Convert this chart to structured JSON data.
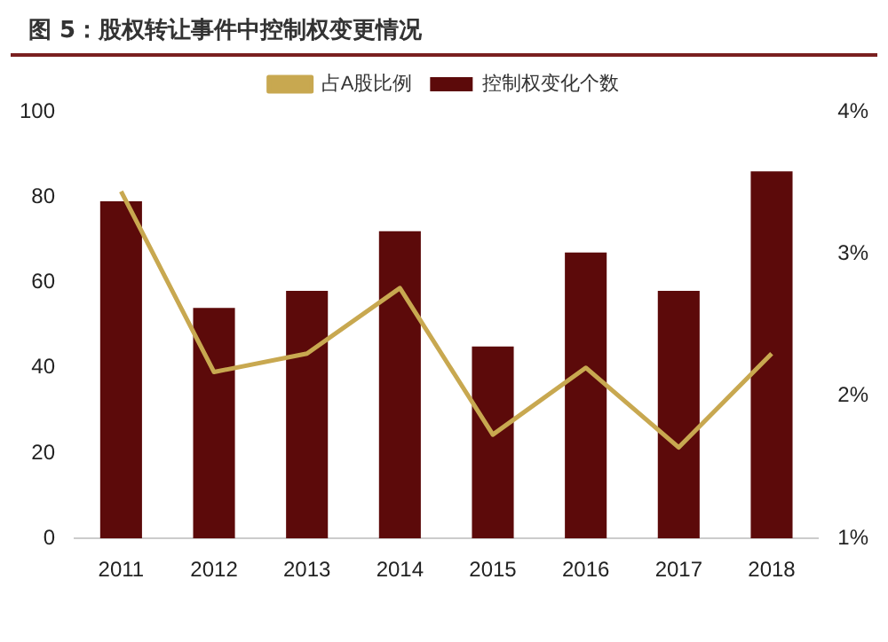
{
  "chart_data": {
    "type": "bar",
    "title": "图 5：股权转让事件中控制权变更情况",
    "categories": [
      "2011",
      "2012",
      "2013",
      "2014",
      "2015",
      "2016",
      "2017",
      "2018"
    ],
    "series": [
      {
        "name": "控制权变化个数",
        "color": "#5c0a0a",
        "values": [
          79,
          54,
          58,
          72,
          45,
          67,
          58,
          86
        ]
      },
      {
        "name": "占A股比例",
        "type": "line",
        "axis": "y2",
        "color": "#c8a850",
        "values": [
          3.44,
          2.17,
          2.3,
          2.76,
          1.73,
          2.2,
          1.64,
          2.3
        ]
      }
    ],
    "ylim": [
      0,
      100
    ],
    "yticks": [
      0,
      20,
      40,
      60,
      80,
      100
    ],
    "y2lim": [
      1,
      4
    ],
    "y2ticks": [
      {
        "value": 1,
        "label": "1%"
      },
      {
        "value": 2,
        "label": "2%"
      },
      {
        "value": 3,
        "label": "3%"
      },
      {
        "value": 4,
        "label": "4%"
      }
    ],
    "legend": "top",
    "grid": false,
    "marker": "none"
  }
}
